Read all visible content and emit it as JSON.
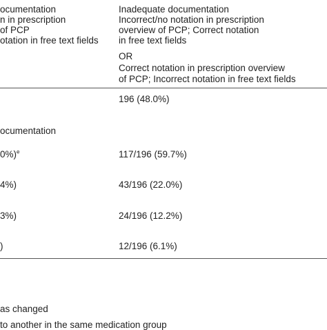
{
  "header": {
    "left_lines": [
      "ocumentation",
      "n in prescription",
      "of PCP",
      "otation in free text fields"
    ],
    "right_lines": [
      "Inadequate documentation",
      "Incorrect/no notation in prescription",
      "overview of PCP; Correct notation",
      "in free text fields",
      "OR",
      "Correct notation in prescription overview",
      "of PCP; Incorrect notation in free text fields"
    ]
  },
  "rows": {
    "total_right": "196 (48.0%)",
    "section_label": "ocumentation",
    "r1_left": "0%)",
    "r1_left_sup": "e",
    "r1_right": "117/196 (59.7%)",
    "r2_left": "4%)",
    "r2_right": "43/196 (22.0%)",
    "r3_left": "3%)",
    "r3_right": "24/196 (12.2%)",
    "r4_left": ")",
    "r4_right": "12/196 (6.1%)"
  },
  "footnotes": {
    "line1": "as changed",
    "line2": "to another in the same medication group"
  }
}
